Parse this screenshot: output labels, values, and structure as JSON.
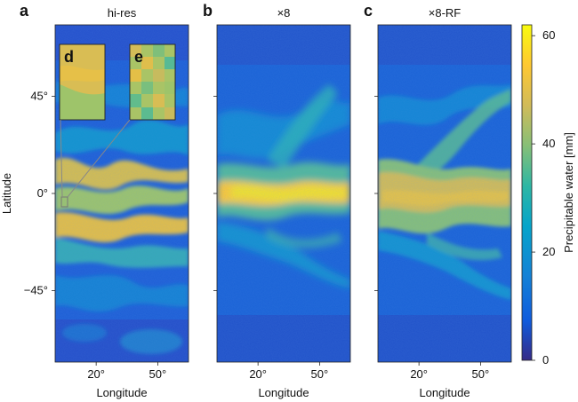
{
  "colors": {
    "colormap": [
      "#352a87",
      "#0f5cdd",
      "#1481d6",
      "#06a4ca",
      "#2eb7a4",
      "#87bf77",
      "#d1bb59",
      "#fec832",
      "#f9fb0e"
    ],
    "frame": "#222222"
  },
  "chart_data": [
    {
      "type": "heatmap",
      "panel_letter": "a",
      "title": "hi-res",
      "xlabel": "Longitude",
      "ylabel": "Latitude",
      "x_ticks": [
        "20°",
        "50°"
      ],
      "y_ticks": [
        "45°",
        "0°",
        "−45°"
      ],
      "x_tick_values": [
        20,
        50
      ],
      "y_tick_values": [
        45,
        0,
        -45
      ],
      "xlim": [
        0,
        65
      ],
      "ylim": [
        -78,
        78
      ],
      "field": "precipitable water",
      "insets": [
        {
          "letter": "d",
          "content": "zoom, hi-res"
        },
        {
          "letter": "e",
          "content": "zoom, coarse"
        }
      ]
    },
    {
      "type": "heatmap",
      "panel_letter": "b",
      "title": "×8",
      "xlabel": "Longitude",
      "x_ticks": [
        "20°",
        "50°"
      ],
      "x_tick_values": [
        20,
        50
      ],
      "xlim": [
        0,
        65
      ],
      "ylim": [
        -78,
        78
      ]
    },
    {
      "type": "heatmap",
      "panel_letter": "c",
      "title": "×8-RF",
      "xlabel": "Longitude",
      "x_ticks": [
        "20°",
        "50°"
      ],
      "x_tick_values": [
        20,
        50
      ],
      "xlim": [
        0,
        65
      ],
      "ylim": [
        -78,
        78
      ]
    },
    {
      "type": "colorbar",
      "label": "Precipitable water [mm]",
      "ticks": [
        "0",
        "20",
        "40",
        "60"
      ],
      "tick_values": [
        0,
        20,
        40,
        60
      ],
      "range": [
        0,
        62
      ]
    }
  ]
}
